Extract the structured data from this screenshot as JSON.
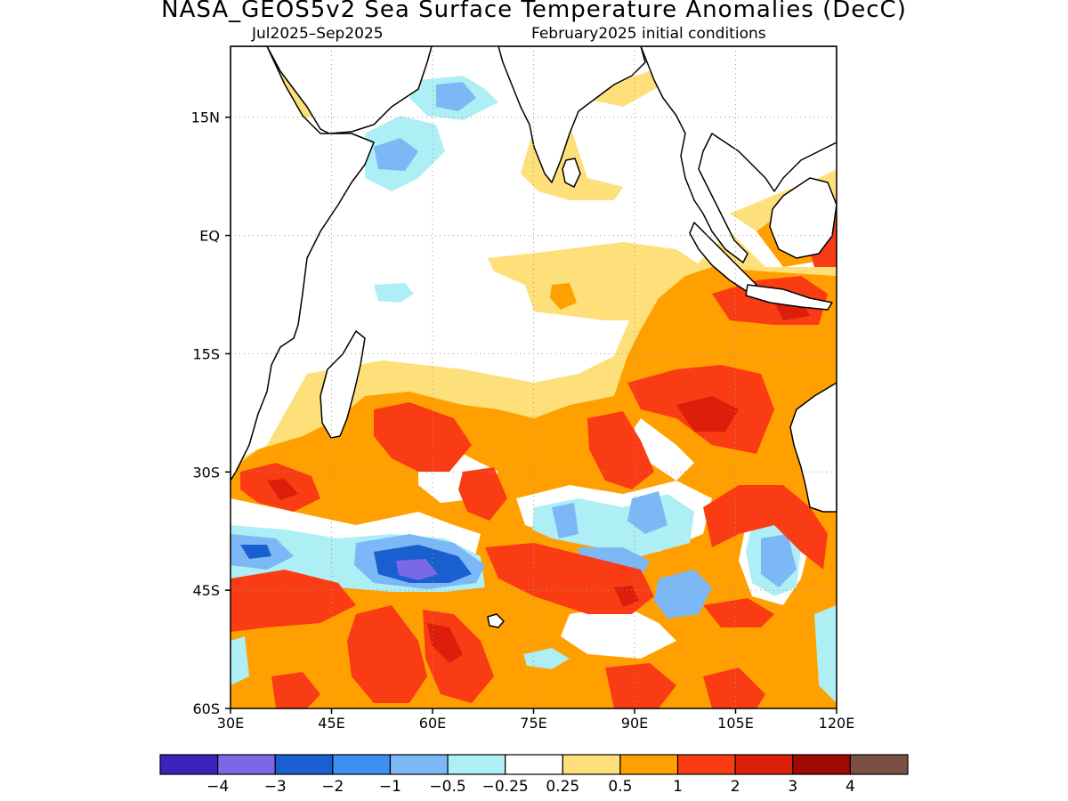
{
  "title": "NASA_GEOS5v2 Sea Surface Temperature Anomalies (DecC)",
  "subtitle_left": "Jul2025–Sep2025",
  "subtitle_right": "February2025 initial conditions",
  "map": {
    "lon_range": [
      30,
      120
    ],
    "lat_range": [
      -60,
      24
    ],
    "x_ticks": [
      {
        "value": 30,
        "label": "30E"
      },
      {
        "value": 45,
        "label": "45E"
      },
      {
        "value": 60,
        "label": "60E"
      },
      {
        "value": 75,
        "label": "75E"
      },
      {
        "value": 90,
        "label": "90E"
      },
      {
        "value": 105,
        "label": "105E"
      },
      {
        "value": 120,
        "label": "120E"
      }
    ],
    "y_ticks": [
      {
        "value": 15,
        "label": "15N"
      },
      {
        "value": 0,
        "label": "EQ"
      },
      {
        "value": -15,
        "label": "15S"
      },
      {
        "value": -30,
        "label": "30S"
      },
      {
        "value": -45,
        "label": "45S"
      },
      {
        "value": -60,
        "label": "60S"
      }
    ],
    "grid": "dotted"
  },
  "colorbar": {
    "colors": [
      "#3b22b8",
      "#7b68e8",
      "#1a5fd0",
      "#3d8ff0",
      "#7bb8f5",
      "#aeeef5",
      "#ffffff",
      "#fde07a",
      "#ffa000",
      "#fa3c14",
      "#dc1e0a",
      "#a00a00",
      "#7a5044"
    ],
    "labels": [
      "−4",
      "−3",
      "−2",
      "−1",
      "−0.5",
      "−0.25",
      "0.25",
      "0.5",
      "1",
      "2",
      "3",
      "4"
    ]
  }
}
